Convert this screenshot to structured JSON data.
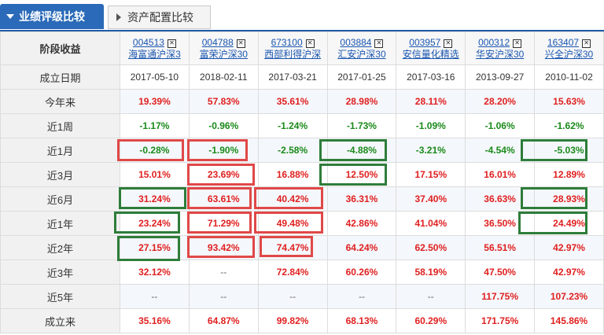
{
  "tabs": [
    {
      "label": "业绩评级比较",
      "active": true
    },
    {
      "label": "资产配置比较",
      "active": false
    }
  ],
  "table": {
    "corner_label": "阶段收益",
    "funds": [
      {
        "code": "004513",
        "name": "海富通沪深3"
      },
      {
        "code": "004788",
        "name": "富荣沪深30"
      },
      {
        "code": "673100",
        "name": "西部利得沪深"
      },
      {
        "code": "003884",
        "name": "汇安沪深30"
      },
      {
        "code": "003957",
        "name": "安信量化精选"
      },
      {
        "code": "000312",
        "name": "华安沪深30"
      },
      {
        "code": "163407",
        "name": "兴全沪深30"
      }
    ],
    "close_glyph": "✕",
    "rows": [
      {
        "label": "成立日期",
        "kind": "date",
        "values": [
          "2017-05-10",
          "2018-02-11",
          "2017-03-21",
          "2017-01-25",
          "2017-03-16",
          "2013-09-27",
          "2010-11-02"
        ]
      },
      {
        "label": "今年来",
        "values": [
          "19.39%",
          "57.83%",
          "35.61%",
          "28.98%",
          "28.11%",
          "28.20%",
          "15.63%"
        ]
      },
      {
        "label": "近1周",
        "values": [
          "-1.17%",
          "-0.96%",
          "-1.24%",
          "-1.73%",
          "-1.09%",
          "-1.06%",
          "-1.62%"
        ]
      },
      {
        "label": "近1月",
        "values": [
          "-0.28%",
          "-1.90%",
          "-2.58%",
          "-4.88%",
          "-3.21%",
          "-4.54%",
          "-5.03%"
        ]
      },
      {
        "label": "近3月",
        "values": [
          "15.01%",
          "23.69%",
          "16.88%",
          "12.50%",
          "17.15%",
          "16.01%",
          "12.89%"
        ]
      },
      {
        "label": "近6月",
        "values": [
          "31.24%",
          "63.61%",
          "40.42%",
          "36.31%",
          "37.40%",
          "36.63%",
          "28.93%"
        ]
      },
      {
        "label": "近1年",
        "values": [
          "23.24%",
          "71.29%",
          "49.48%",
          "42.86%",
          "41.04%",
          "36.50%",
          "24.49%"
        ]
      },
      {
        "label": "近2年",
        "values": [
          "27.15%",
          "93.42%",
          "74.47%",
          "64.24%",
          "62.50%",
          "56.51%",
          "42.97%"
        ]
      },
      {
        "label": "近3年",
        "values": [
          "32.12%",
          "--",
          "72.84%",
          "60.26%",
          "58.19%",
          "47.50%",
          "42.97%"
        ]
      },
      {
        "label": "近5年",
        "values": [
          "--",
          "--",
          "--",
          "--",
          "--",
          "117.75%",
          "107.23%"
        ]
      },
      {
        "label": "成立来",
        "values": [
          "35.16%",
          "64.87%",
          "99.82%",
          "68.13%",
          "60.29%",
          "171.75%",
          "145.86%"
        ]
      }
    ]
  },
  "colors": {
    "tab_active_bg": "#2a6ab8",
    "link_blue": "#1a56b0",
    "positive_red": "#e02020",
    "negative_green": "#1a8a1a",
    "highlight_red": "#e04848",
    "highlight_green": "#2e7d3a"
  },
  "icons": {
    "active_tab_arrow": "triangle-down-icon",
    "inactive_tab_arrow": "triangle-right-icon",
    "remove_fund": "close-box-icon"
  }
}
